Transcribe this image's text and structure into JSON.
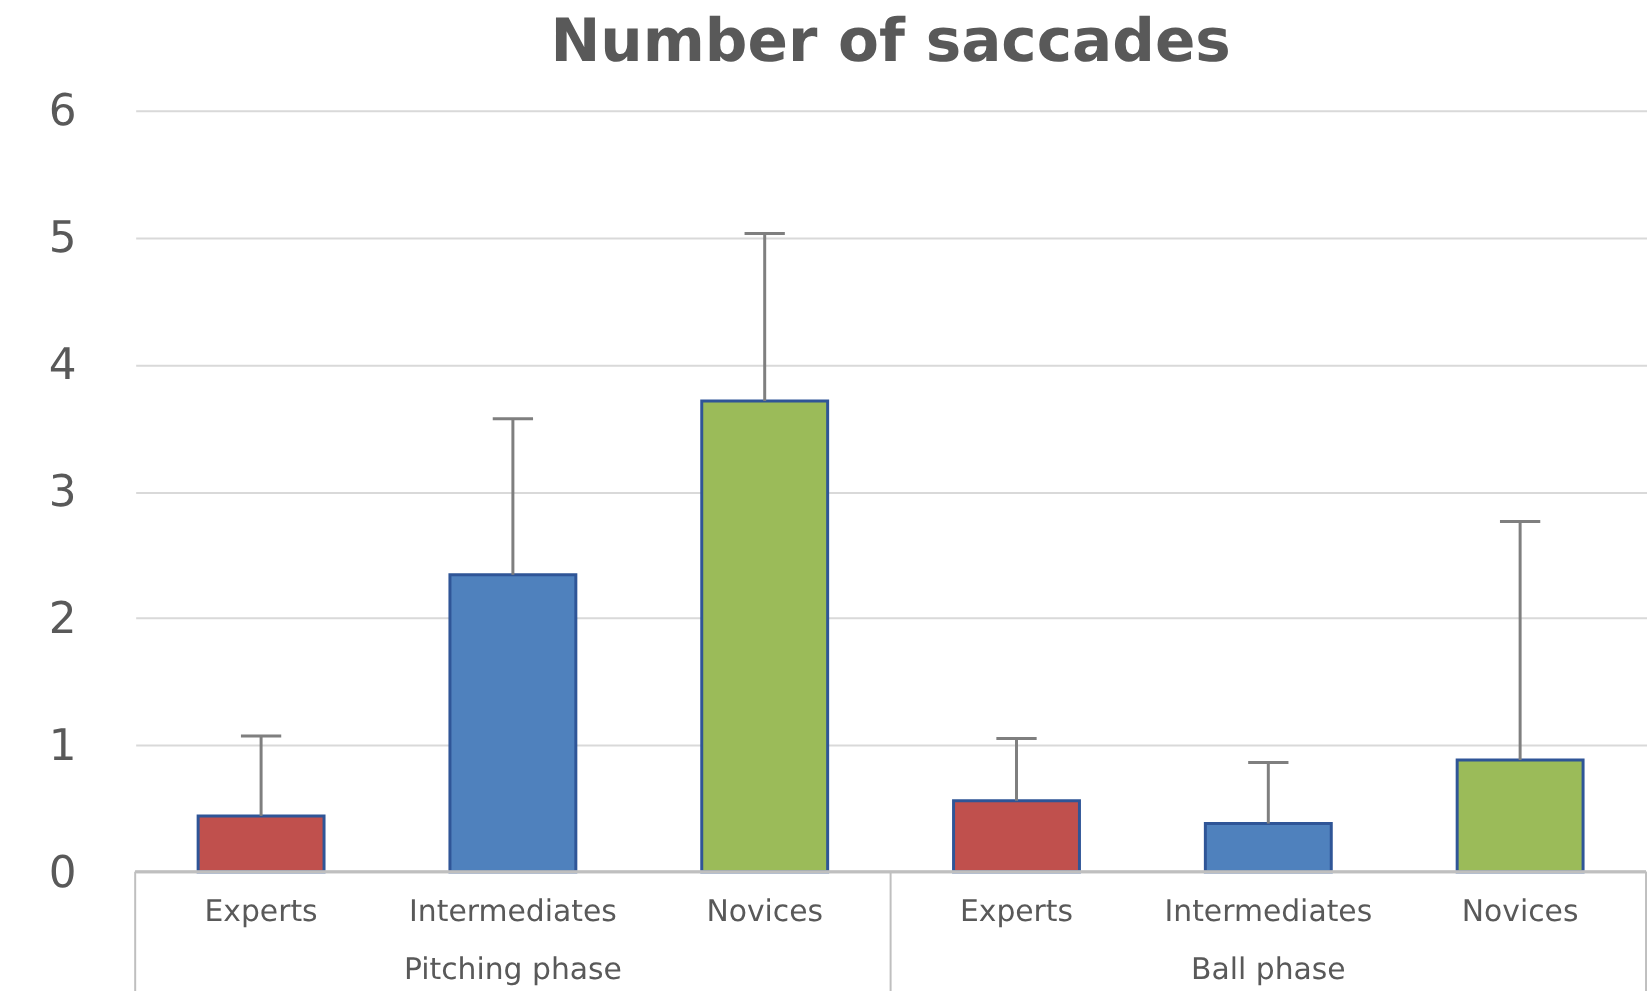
{
  "chart_data": {
    "type": "bar",
    "title": "Number of saccades",
    "categories": [
      "Experts",
      "Intermediates",
      "Novices",
      "Experts",
      "Intermediates",
      "Novices"
    ],
    "values": [
      0.44,
      2.34,
      3.71,
      0.56,
      0.38,
      0.88
    ],
    "colors": [
      "#c0504d",
      "#4f81bd",
      "#9bbb59",
      "#c0504d",
      "#4f81bd",
      "#9bbb59"
    ],
    "errors": [
      [
        0.44,
        1.07
      ],
      [
        2.34,
        3.57
      ],
      [
        3.71,
        5.03
      ],
      [
        0.56,
        1.05
      ],
      [
        0.38,
        0.86
      ],
      [
        0.88,
        2.76
      ]
    ],
    "ylim": [
      0,
      6
    ],
    "yticks": [
      0,
      1,
      2,
      3,
      4,
      5,
      6
    ],
    "grid": "y",
    "annotations": [
      "Pitching phase",
      "Ball phase"
    ]
  }
}
